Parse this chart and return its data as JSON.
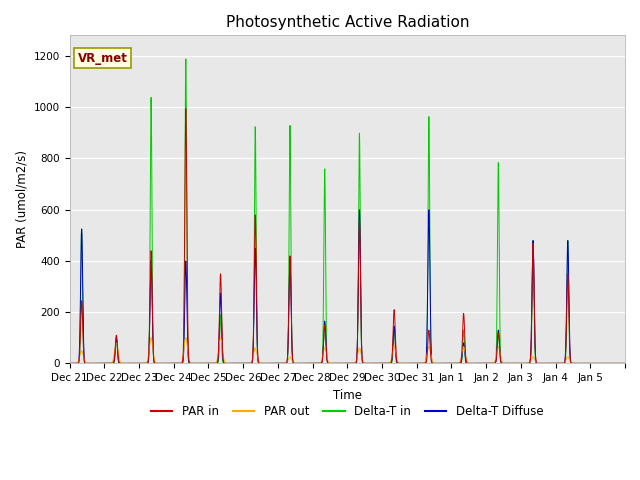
{
  "title": "Photosynthetic Active Radiation",
  "ylabel": "PAR (umol/m2/s)",
  "xlabel": "Time",
  "annotation": "VR_met",
  "ylim": [
    0,
    1280
  ],
  "yticks": [
    0,
    200,
    400,
    600,
    800,
    1000,
    1200
  ],
  "colors": {
    "par_in": "#cc0000",
    "par_out": "#ffaa00",
    "delta_t_in": "#00cc00",
    "delta_t_diffuse": "#0000cc"
  },
  "legend_labels": [
    "PAR in",
    "PAR out",
    "Delta-T in",
    "Delta-T Diffuse"
  ],
  "bg_color": "#e8e8e8",
  "days": [
    "Dec 21",
    "Dec 22",
    "Dec 23",
    "Dec 24",
    "Dec 25",
    "Dec 26",
    "Dec 27",
    "Dec 28",
    "Dec 29",
    "Dec 30",
    "Dec 31",
    "Jan 1",
    "Jan 2",
    "Jan 3",
    "Jan 4",
    "Jan 5"
  ],
  "daily_peaks": {
    "par_in": [
      245,
      0,
      110,
      0,
      440,
      995,
      0,
      350,
      0,
      580,
      420,
      0,
      150,
      0,
      560,
      210,
      0,
      130,
      0,
      195,
      0,
      120,
      470,
      350,
      0
    ],
    "par_out": [
      50,
      0,
      80,
      0,
      100,
      100,
      0,
      100,
      0,
      60,
      25,
      0,
      60,
      0,
      60,
      65,
      0,
      65,
      0,
      65,
      0,
      65,
      25,
      25,
      0
    ],
    "delta_t_in": [
      525,
      0,
      100,
      0,
      1040,
      1190,
      0,
      190,
      0,
      925,
      930,
      0,
      760,
      0,
      900,
      145,
      0,
      965,
      0,
      130,
      0,
      785,
      480,
      480,
      0
    ],
    "delta_t_diff": [
      525,
      0,
      100,
      0,
      400,
      400,
      0,
      275,
      0,
      450,
      405,
      0,
      165,
      0,
      600,
      145,
      0,
      600,
      0,
      80,
      0,
      130,
      480,
      480,
      0
    ]
  },
  "spike_positions": [
    0.25,
    0.35,
    0.5,
    0.55,
    0.5,
    0.5,
    0.5,
    0.5,
    0.5,
    0.5,
    0.5,
    0.5,
    0.5,
    0.5,
    0.5,
    0.5
  ],
  "spike_positions2": [
    0.35,
    0.65,
    0.6,
    0.65,
    0.65,
    0.65,
    0.65,
    0.65,
    0.65,
    0.65,
    0.65,
    0.65,
    0.65,
    0.65,
    0.65,
    0.65
  ]
}
